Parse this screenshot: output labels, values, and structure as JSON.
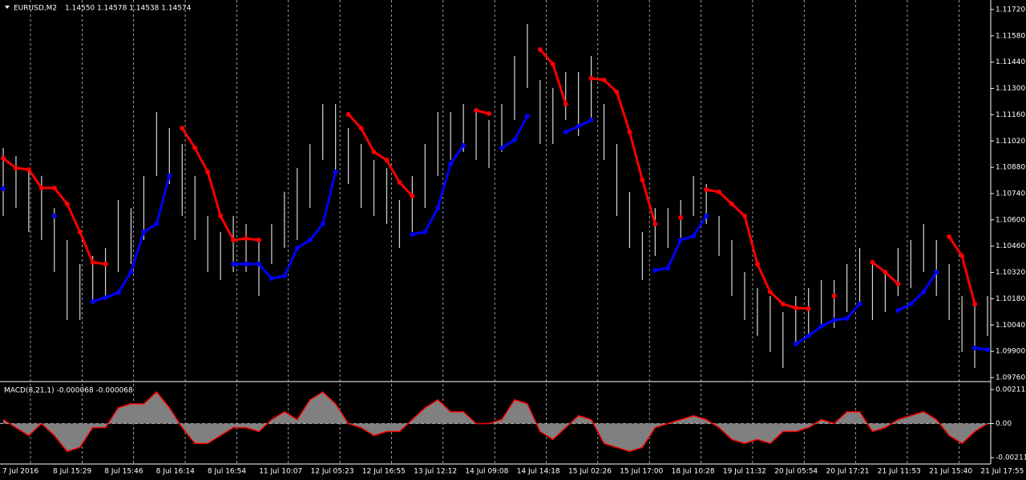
{
  "chart_data": [
    {
      "type": "ohlc",
      "symbol": "EURUSD,M2",
      "quote": "1.14550 1.14578 1.14538 1.14574",
      "color": "#d8d8d8",
      "high": [
        1.10983,
        1.1094,
        1.10855,
        1.10834,
        1.10663,
        1.10493,
        1.10365,
        1.10408,
        1.1045,
        1.10706,
        1.10663,
        1.10834,
        1.11175,
        1.11089,
        1.11004,
        1.10834,
        1.10621,
        1.10536,
        1.10621,
        1.10578,
        1.10493,
        1.10578,
        1.10749,
        1.10876,
        1.11004,
        1.11217,
        1.11217,
        1.11089,
        1.11004,
        1.10919,
        1.10876,
        1.10706,
        1.10834,
        1.11004,
        1.11175,
        1.11175,
        1.11217,
        1.11175,
        1.11132,
        1.11217,
        1.11473,
        1.11643,
        1.11345,
        1.11302,
        1.11388,
        1.11388,
        1.11473,
        1.11217,
        1.11004,
        1.10749,
        1.10536,
        1.10663,
        1.10663,
        1.10706,
        1.10834,
        1.10791,
        1.10621,
        1.10493,
        1.10322,
        1.10237,
        1.10195,
        1.10109,
        1.10195,
        1.10237,
        1.1028,
        1.1028,
        1.10365,
        1.1045,
        1.10365,
        1.10322,
        1.1045,
        1.10493,
        1.10578,
        1.10493,
        1.10365,
        1.10195,
        1.10152,
        1.10195
      ],
      "low": [
        1.10621,
        1.10663,
        1.10536,
        1.10493,
        1.10322,
        1.10067,
        1.10067,
        1.10152,
        1.10195,
        1.10322,
        1.10365,
        1.10493,
        1.10834,
        1.10791,
        1.10621,
        1.10493,
        1.10322,
        1.1028,
        1.10322,
        1.10322,
        1.10195,
        1.10365,
        1.1045,
        1.10493,
        1.10663,
        1.10919,
        1.10834,
        1.10791,
        1.10663,
        1.10621,
        1.10578,
        1.1045,
        1.10536,
        1.10663,
        1.10834,
        1.10919,
        1.10962,
        1.10919,
        1.10876,
        1.10962,
        1.11132,
        1.11302,
        1.11004,
        1.11004,
        1.11132,
        1.11047,
        1.11132,
        1.10919,
        1.10621,
        1.1045,
        1.1028,
        1.10408,
        1.1045,
        1.10493,
        1.10621,
        1.10578,
        1.10408,
        1.10195,
        1.10067,
        1.09982,
        1.09896,
        1.09811,
        1.09939,
        1.09982,
        1.10024,
        1.10024,
        1.10109,
        1.10152,
        1.10067,
        1.10109,
        1.10195,
        1.10237,
        1.10322,
        1.10195,
        1.10067,
        1.09896,
        1.09811,
        1.09982
      ],
      "series": [
        {
          "color": "#ff0000",
          "values": [
            1.10928,
            1.10876,
            1.10868,
            1.1077,
            1.1077,
            1.10685,
            1.10536,
            1.10374,
            1.10365,
            null,
            null,
            null,
            null,
            null,
            1.11089,
            1.10983,
            1.10855,
            1.10621,
            1.10493,
            1.10501,
            1.10493,
            null,
            null,
            null,
            null,
            null,
            null,
            1.11162,
            1.11089,
            1.10962,
            1.10919,
            1.108,
            1.10727,
            null,
            null,
            null,
            null,
            1.11183,
            1.11166,
            null,
            null,
            null,
            1.11507,
            1.1143,
            1.11217,
            null,
            1.11354,
            1.11345,
            1.11281,
            1.11068,
            1.10812,
            1.10578,
            null,
            1.10612,
            null,
            1.10761,
            1.10749,
            1.10685,
            1.10621,
            1.10365,
            1.10216,
            1.10152,
            1.10131,
            1.10127,
            null,
            1.10195,
            null,
            null,
            1.10374,
            1.10322,
            1.10259,
            null,
            null,
            null,
            1.1051,
            1.10408,
            1.10152,
            null
          ]
        },
        {
          "color": "#0000ff",
          "values": [
            1.10766,
            null,
            null,
            null,
            1.10621,
            null,
            null,
            1.10165,
            1.10186,
            1.10212,
            1.10322,
            1.10536,
            1.10578,
            1.10834,
            null,
            null,
            null,
            null,
            1.10365,
            1.10365,
            1.10365,
            1.10288,
            1.10301,
            1.1045,
            1.10493,
            1.10578,
            1.10855,
            null,
            null,
            null,
            null,
            null,
            1.10523,
            1.10536,
            1.10663,
            1.10898,
            1.10996,
            null,
            null,
            1.10983,
            1.11026,
            1.11153,
            null,
            null,
            1.11068,
            1.11098,
            1.11132,
            null,
            null,
            null,
            null,
            1.10331,
            1.10344,
            1.10493,
            1.10514,
            1.10621,
            null,
            null,
            null,
            null,
            null,
            null,
            1.09939,
            1.09982,
            1.10033,
            1.10067,
            1.10075,
            1.10152,
            null,
            null,
            1.10118,
            1.10152,
            1.10216,
            1.10322,
            null,
            null,
            1.09918,
            1.09909
          ]
        }
      ],
      "ylim": [
        1.09743,
        1.11771
      ],
      "yticks": [
        {
          "value": 1.1172,
          "label": "1.11720"
        },
        {
          "value": 1.1158,
          "label": "1.11580"
        },
        {
          "value": 1.1144,
          "label": "1.11440"
        },
        {
          "value": 1.113,
          "label": "1.11300"
        },
        {
          "value": 1.1116,
          "label": "1.11160"
        },
        {
          "value": 1.1102,
          "label": "1.11020"
        },
        {
          "value": 1.1088,
          "label": "1.10880"
        },
        {
          "value": 1.1074,
          "label": "1.10740"
        },
        {
          "value": 1.106,
          "label": "1.10600"
        },
        {
          "value": 1.1046,
          "label": "1.10460"
        },
        {
          "value": 1.1032,
          "label": "1.10320"
        },
        {
          "value": 1.1018,
          "label": "1.10180"
        },
        {
          "value": 1.1004,
          "label": "1.10040"
        },
        {
          "value": 1.099,
          "label": "1.09900"
        },
        {
          "value": 1.0976,
          "label": "1.09760"
        }
      ]
    },
    {
      "type": "area",
      "title": "MACD(8,21,1) -0.000068 -0.000068",
      "color": "#808080",
      "line_color": "#ff0000",
      "values": [
        0.000246,
        -0.000246,
        -0.000737,
        0,
        -0.000737,
        -0.001719,
        -0.001473,
        -0.000246,
        -0.000246,
        0.000982,
        0.001228,
        0.001228,
        0.001965,
        0.000982,
        -0.000246,
        -0.001228,
        -0.001228,
        -0.000737,
        -0.000246,
        -0.000246,
        -0.000491,
        0.000246,
        0.000737,
        0.000246,
        0.001473,
        0.001965,
        0.001228,
        0,
        -0.000246,
        -0.000737,
        -0.000491,
        -0.000491,
        0.000246,
        0.000982,
        0.001473,
        0.000737,
        0.000737,
        0,
        0,
        0.000246,
        0.001473,
        0.001228,
        -0.000491,
        -0.000982,
        -0.000246,
        0.000491,
        0.000246,
        -0.001228,
        -0.001473,
        -0.001719,
        -0.001473,
        -0.000246,
        0,
        0.000246,
        0.000491,
        0.000246,
        -0.000246,
        -0.000982,
        -0.001228,
        -0.000982,
        -0.001228,
        -0.000491,
        -0.000491,
        -0.000246,
        0.000246,
        0,
        0.000737,
        0.000737,
        -0.000491,
        -0.000246,
        0.000246,
        0.000491,
        0.000737,
        0.000246,
        -0.000737,
        -0.001228,
        -0.000491,
        0
      ],
      "ylim": [
        -0.002505,
        0.002456
      ],
      "yticks": [
        0.002112,
        {
          "value": 0,
          "label": "0.00"
        },
        -0.002112
      ],
      "x_labels": [
        "7 Jul 2016",
        "8 Jul 15:29",
        "8 Jul 15:46",
        "8 Jul 16:14",
        "8 Jul 16:54",
        "11 Jul 10:07",
        "12 Jul 05:23",
        "12 Jul 16:55",
        "13 Jul 12:12",
        "14 Jul 09:08",
        "14 Jul 14:18",
        "15 Jul 02:26",
        "15 Jul 17:00",
        "18 Jul 10:28",
        "19 Jul 11:32",
        "20 Jul 05:54",
        "20 Jul 17:21",
        "21 Jul 11:53",
        "21 Jul 15:40",
        "21 Jul 17:55"
      ]
    }
  ]
}
